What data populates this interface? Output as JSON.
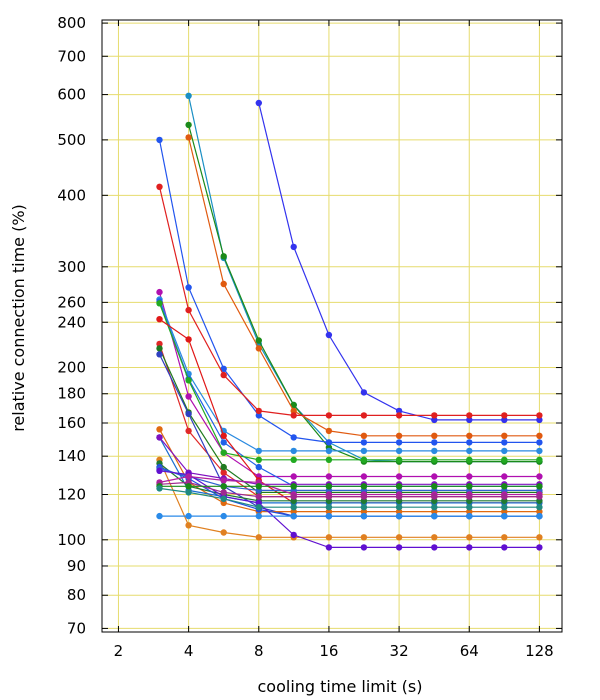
{
  "chart_data": {
    "type": "line",
    "xlabel": "cooling time limit (s)",
    "ylabel": "relative connection time (%)",
    "x_scale": "log2",
    "y_scale": "log",
    "xlim": [
      1.7,
      160
    ],
    "ylim": [
      69,
      810
    ],
    "x_ticks": [
      2,
      4,
      8,
      16,
      32,
      64,
      128
    ],
    "y_ticks": [
      70,
      80,
      90,
      100,
      120,
      140,
      160,
      180,
      200,
      240,
      260,
      300,
      400,
      500,
      600,
      700,
      800
    ],
    "grid": true,
    "grid_color": "#e6dc6e",
    "x": [
      3,
      4,
      5.66,
      8,
      11.3,
      16,
      22.6,
      32,
      45.3,
      64,
      90.5,
      128
    ],
    "series": [
      {
        "color": "#3333ee",
        "values": [
          null,
          null,
          null,
          580,
          325,
          228,
          181,
          168,
          162,
          162,
          162,
          162
        ]
      },
      {
        "color": "#1a8fc4",
        "values": [
          null,
          597,
          311,
          220,
          172,
          148,
          138,
          137,
          137,
          137,
          137,
          137
        ]
      },
      {
        "color": "#1a8a1a",
        "values": [
          null,
          531,
          313,
          223,
          172,
          145,
          137,
          137,
          137,
          137,
          137,
          137
        ]
      },
      {
        "color": "#e05a10",
        "values": [
          null,
          505,
          280,
          216,
          168,
          155,
          152,
          152,
          152,
          152,
          152,
          152
        ]
      },
      {
        "color": "#2255ee",
        "values": [
          500,
          276,
          199,
          165,
          151,
          148,
          148,
          148,
          148,
          148,
          148,
          148
        ]
      },
      {
        "color": "#e02020",
        "values": [
          414,
          252,
          194,
          168,
          165,
          165,
          165,
          165,
          165,
          165,
          165,
          165
        ]
      },
      {
        "color": "#b010b0",
        "values": [
          271,
          178,
          142,
          129,
          129,
          129,
          129,
          129,
          129,
          129,
          129,
          129
        ]
      },
      {
        "color": "#2a8ae0",
        "values": [
          263,
          195,
          155,
          143,
          143,
          143,
          143,
          143,
          143,
          143,
          143,
          143
        ]
      },
      {
        "color": "#2060e8",
        "values": [
          261,
          191,
          148,
          134,
          124,
          124,
          124,
          124,
          124,
          124,
          124,
          124
        ]
      },
      {
        "color": "#22aa22",
        "values": [
          259,
          190,
          142,
          138,
          138,
          138,
          138,
          138,
          138,
          138,
          138,
          138
        ]
      },
      {
        "color": "#e01818",
        "values": [
          243,
          224,
          152,
          127,
          116,
          116,
          116,
          116,
          116,
          116,
          116,
          116
        ]
      },
      {
        "color": "#e02828",
        "values": [
          220,
          155,
          131,
          119,
          119,
          119,
          119,
          119,
          119,
          119,
          119,
          119
        ]
      },
      {
        "color": "#1f7a1f",
        "values": [
          216,
          167,
          134,
          121,
          121,
          121,
          121,
          121,
          121,
          121,
          121,
          121
        ]
      },
      {
        "color": "#3040c0",
        "values": [
          211,
          166,
          124,
          114,
          110,
          110,
          110,
          110,
          110,
          110,
          110,
          110
        ]
      },
      {
        "color": "#e06a10",
        "values": [
          156,
          126,
          116,
          112,
          112,
          112,
          112,
          112,
          112,
          112,
          112,
          112
        ]
      },
      {
        "color": "#1a6fd0",
        "values": [
          151,
          122,
          119,
          116,
          116,
          116,
          116,
          116,
          116,
          116,
          116,
          116
        ]
      },
      {
        "color": "#8010c0",
        "values": [
          151,
          131,
          128,
          125,
          125,
          125,
          125,
          125,
          125,
          125,
          125,
          125
        ]
      },
      {
        "color": "#e08020",
        "values": [
          138,
          106,
          103,
          101,
          101,
          101,
          101,
          101,
          101,
          101,
          101,
          101
        ]
      },
      {
        "color": "#1f7a30",
        "values": [
          136,
          124,
          120,
          117,
          117,
          117,
          117,
          117,
          117,
          117,
          117,
          117
        ]
      },
      {
        "color": "#2050e0",
        "values": [
          134,
          128,
          118,
          113,
          110,
          110,
          110,
          110,
          110,
          110,
          110,
          110
        ]
      },
      {
        "color": "#3060d0",
        "values": [
          133,
          129,
          124,
          122,
          122,
          122,
          122,
          122,
          122,
          122,
          122,
          122
        ]
      },
      {
        "color": "#6010d0",
        "values": [
          132,
          130,
          119,
          116,
          102,
          97,
          97,
          97,
          97,
          97,
          97,
          97
        ]
      },
      {
        "color": "#b020a0",
        "values": [
          126,
          129,
          127,
          126,
          120,
          120,
          120,
          120,
          120,
          120,
          120,
          120
        ]
      },
      {
        "color": "#a02890",
        "values": [
          125,
          126,
          121,
          119,
          119,
          119,
          119,
          119,
          119,
          119,
          119,
          119
        ]
      },
      {
        "color": "#188a18",
        "values": [
          124,
          124,
          124,
          124,
          124,
          124,
          124,
          124,
          124,
          124,
          124,
          124
        ]
      },
      {
        "color": "#208a80",
        "values": [
          123,
          121,
          118,
          114,
          114,
          114,
          114,
          114,
          114,
          114,
          114,
          114
        ]
      },
      {
        "color": "#2a8ae8",
        "values": [
          110,
          110,
          110,
          110,
          110,
          110,
          110,
          110,
          110,
          110,
          110,
          110
        ]
      }
    ]
  }
}
